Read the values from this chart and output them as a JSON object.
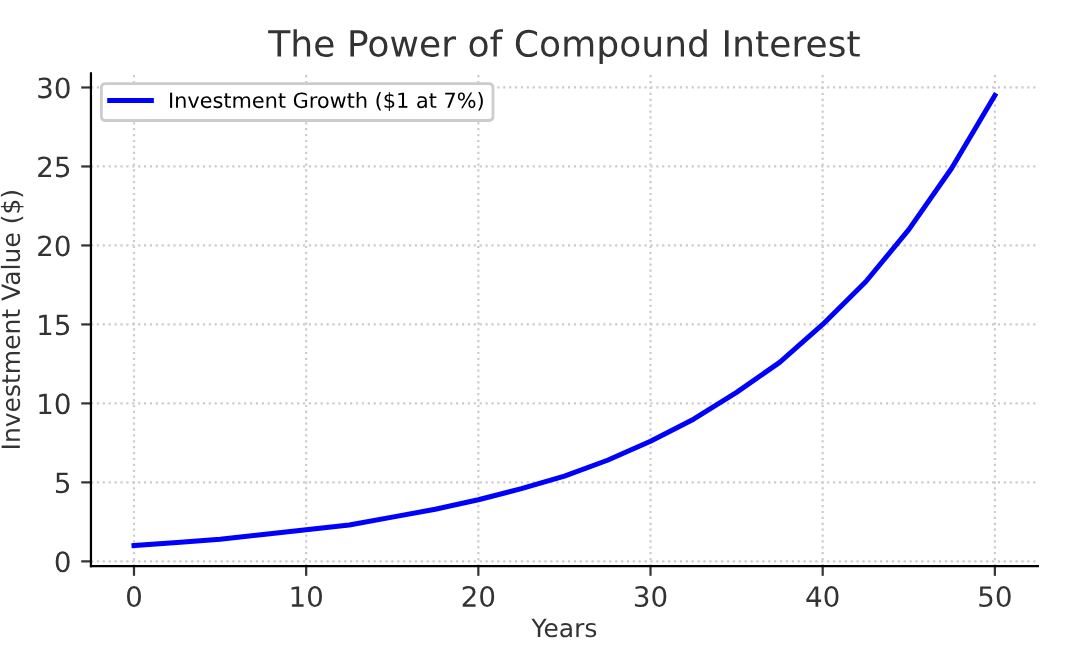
{
  "chart_data": {
    "type": "line",
    "title": "The Power of Compound Interest",
    "xlabel": "Years",
    "ylabel": "Investment Value ($)",
    "x": [
      0,
      2.5,
      5,
      7.5,
      10,
      12.5,
      15,
      17.5,
      20,
      22.5,
      25,
      27.5,
      30,
      32.5,
      35,
      37.5,
      40,
      42.5,
      45,
      47.5,
      50
    ],
    "series": [
      {
        "name": "Investment Growth ($1 at 7%)",
        "color": "#0000ff",
        "values": [
          1.0,
          1.2,
          1.4,
          1.7,
          2.0,
          2.3,
          2.8,
          3.3,
          3.9,
          4.6,
          5.4,
          6.4,
          7.6,
          9.0,
          10.7,
          12.6,
          15.0,
          17.7,
          21.0,
          24.9,
          29.5
        ]
      }
    ],
    "xlim": [
      -2.5,
      52.5
    ],
    "ylim": [
      -0.3,
      30.9
    ],
    "xticks": [
      0,
      10,
      20,
      30,
      40,
      50
    ],
    "yticks": [
      0,
      5,
      10,
      15,
      20,
      25,
      30
    ],
    "grid": true,
    "legend": "top left",
    "marker": "none",
    "line_style": "solid"
  }
}
